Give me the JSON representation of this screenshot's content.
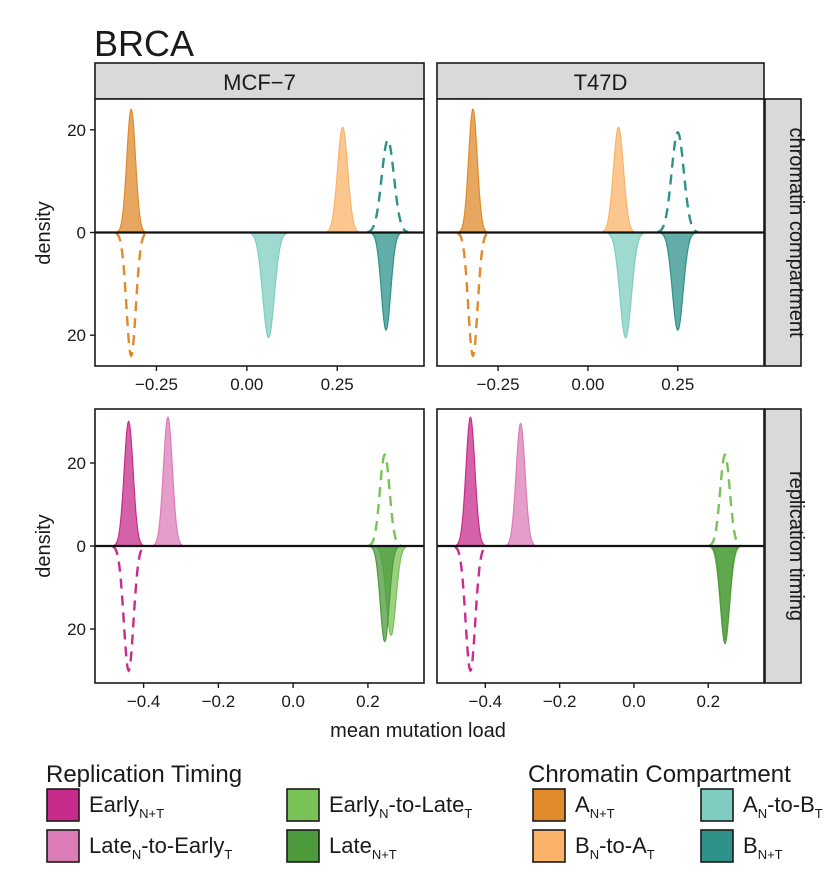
{
  "chart_data": {
    "type": "density",
    "title": "BRCA",
    "xlabel": "mean mutation load",
    "ylabel": "density",
    "columns": [
      "MCF−7",
      "T47D"
    ],
    "rows": [
      {
        "key": "chromatin",
        "strip": "chromatin compartment",
        "xlim": [
          -0.42,
          0.49
        ],
        "xticks": [
          -0.25,
          0.0,
          0.25
        ],
        "xtick_labels": [
          "−0.25",
          "0.00",
          "0.25"
        ],
        "ylim": [
          -26,
          26
        ],
        "yticks": [
          20,
          0,
          -20
        ],
        "ytick_labels": [
          "20",
          "0",
          "20"
        ]
      },
      {
        "key": "replication",
        "strip": "replication timing",
        "xlim": [
          -0.53,
          0.35
        ],
        "xticks": [
          -0.4,
          -0.2,
          0.0,
          0.2
        ],
        "xtick_labels": [
          "−0.4",
          "−0.2",
          "0.0",
          "0.2"
        ],
        "ylim": [
          -33,
          33
        ],
        "yticks": [
          20,
          0,
          -20
        ],
        "ytick_labels": [
          "20",
          "0",
          "20"
        ]
      }
    ],
    "curves": [
      {
        "row": "chromatin",
        "col": 0,
        "series": "A_N+T",
        "side": "up",
        "style": "filled",
        "mean": -0.32,
        "sd": 0.012,
        "peak": 24
      },
      {
        "row": "chromatin",
        "col": 0,
        "series": "A_N+T",
        "side": "down",
        "style": "dashed",
        "mean": -0.32,
        "sd": 0.013,
        "peak": 24
      },
      {
        "row": "chromatin",
        "col": 0,
        "series": "B_N-to-A_T",
        "side": "up",
        "style": "filled",
        "mean": 0.265,
        "sd": 0.014,
        "peak": 20.5
      },
      {
        "row": "chromatin",
        "col": 0,
        "series": "B_N+T",
        "side": "up",
        "style": "dashed",
        "mean": 0.39,
        "sd": 0.017,
        "peak": 18
      },
      {
        "row": "chromatin",
        "col": 0,
        "series": "A_N-to-B_T",
        "side": "down",
        "style": "filled",
        "mean": 0.06,
        "sd": 0.016,
        "peak": 20.5
      },
      {
        "row": "chromatin",
        "col": 0,
        "series": "B_N+T",
        "side": "down",
        "style": "filled",
        "mean": 0.385,
        "sd": 0.013,
        "peak": 19
      },
      {
        "row": "chromatin",
        "col": 1,
        "series": "A_N+T",
        "side": "up",
        "style": "filled",
        "mean": -0.32,
        "sd": 0.012,
        "peak": 24
      },
      {
        "row": "chromatin",
        "col": 1,
        "series": "A_N+T",
        "side": "down",
        "style": "dashed",
        "mean": -0.32,
        "sd": 0.013,
        "peak": 24
      },
      {
        "row": "chromatin",
        "col": 1,
        "series": "B_N-to-A_T",
        "side": "up",
        "style": "filled",
        "mean": 0.085,
        "sd": 0.014,
        "peak": 20.5
      },
      {
        "row": "chromatin",
        "col": 1,
        "series": "B_N+T",
        "side": "up",
        "style": "dashed",
        "mean": 0.25,
        "sd": 0.017,
        "peak": 19.5
      },
      {
        "row": "chromatin",
        "col": 1,
        "series": "A_N-to-B_T",
        "side": "down",
        "style": "filled",
        "mean": 0.105,
        "sd": 0.016,
        "peak": 20.5
      },
      {
        "row": "chromatin",
        "col": 1,
        "series": "B_N+T",
        "side": "down",
        "style": "filled",
        "mean": 0.25,
        "sd": 0.015,
        "peak": 19
      },
      {
        "row": "replication",
        "col": 0,
        "series": "Early_N+T",
        "side": "up",
        "style": "filled",
        "mean": -0.44,
        "sd": 0.012,
        "peak": 30
      },
      {
        "row": "replication",
        "col": 0,
        "series": "Early_N+T",
        "side": "down",
        "style": "dashed",
        "mean": -0.44,
        "sd": 0.013,
        "peak": 30
      },
      {
        "row": "replication",
        "col": 0,
        "series": "Late_N-to-Early_T",
        "side": "up",
        "style": "filled",
        "mean": -0.335,
        "sd": 0.012,
        "peak": 31
      },
      {
        "row": "replication",
        "col": 0,
        "series": "Early_N-to-Late_T",
        "side": "up",
        "style": "dashed",
        "mean": 0.245,
        "sd": 0.013,
        "peak": 22
      },
      {
        "row": "replication",
        "col": 0,
        "series": "Early_N-to-Late_T",
        "side": "down",
        "style": "filled",
        "mean": 0.262,
        "sd": 0.013,
        "peak": 21.5
      },
      {
        "row": "replication",
        "col": 0,
        "series": "Late_N+T",
        "side": "down",
        "style": "filled",
        "mean": 0.245,
        "sd": 0.012,
        "peak": 23
      },
      {
        "row": "replication",
        "col": 1,
        "series": "Early_N+T",
        "side": "up",
        "style": "filled",
        "mean": -0.44,
        "sd": 0.012,
        "peak": 31
      },
      {
        "row": "replication",
        "col": 1,
        "series": "Early_N+T",
        "side": "down",
        "style": "dashed",
        "mean": -0.44,
        "sd": 0.013,
        "peak": 30
      },
      {
        "row": "replication",
        "col": 1,
        "series": "Late_N-to-Early_T",
        "side": "up",
        "style": "filled",
        "mean": -0.305,
        "sd": 0.012,
        "peak": 29.5
      },
      {
        "row": "replication",
        "col": 1,
        "series": "Early_N-to-Late_T",
        "side": "up",
        "style": "dashed",
        "mean": 0.245,
        "sd": 0.013,
        "peak": 22
      },
      {
        "row": "replication",
        "col": 1,
        "series": "Early_N-to-Late_T",
        "side": "down",
        "style": "filled",
        "mean": 0.245,
        "sd": 0.013,
        "peak": 22.5
      },
      {
        "row": "replication",
        "col": 1,
        "series": "Late_N+T",
        "side": "down",
        "style": "filled",
        "mean": 0.245,
        "sd": 0.012,
        "peak": 23.5
      }
    ],
    "legends": [
      {
        "title": "Replication Timing",
        "items": [
          {
            "id": "Early_N+T",
            "base": "Early",
            "sub1": "N+T",
            "mid": "",
            "sub2": "",
            "color": "#c72c8c"
          },
          {
            "id": "Late_N-to-Early_T",
            "base": "Late",
            "sub1": "N",
            "mid": "-to-Early",
            "sub2": "T",
            "color": "#dc7cb7"
          },
          {
            "id": "Early_N-to-Late_T",
            "base": "Early",
            "sub1": "N",
            "mid": "-to-Late",
            "sub2": "T",
            "color": "#78c256"
          },
          {
            "id": "Late_N+T",
            "base": "Late",
            "sub1": "N+T",
            "mid": "",
            "sub2": "",
            "color": "#4c9a3c"
          }
        ]
      },
      {
        "title": "Chromatin Compartment",
        "items": [
          {
            "id": "A_N+T",
            "base": "A",
            "sub1": "N+T",
            "mid": "",
            "sub2": "",
            "color": "#e08a2c"
          },
          {
            "id": "B_N-to-A_T",
            "base": "B",
            "sub1": "N",
            "mid": "-to-A",
            "sub2": "T",
            "color": "#fbb36a"
          },
          {
            "id": "A_N-to-B_T",
            "base": "A",
            "sub1": "N",
            "mid": "-to-B",
            "sub2": "T",
            "color": "#7fcdc0"
          },
          {
            "id": "B_N+T",
            "base": "B",
            "sub1": "N+T",
            "mid": "",
            "sub2": "",
            "color": "#2e9289"
          }
        ]
      }
    ]
  }
}
